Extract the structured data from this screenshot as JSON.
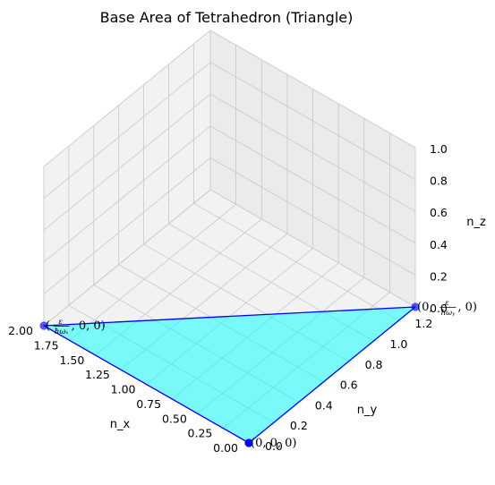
{
  "chart_data": {
    "type": "3d-surface",
    "title": "Base Area of Tetrahedron (Triangle)",
    "xlabel": "n_x",
    "ylabel": "n_y",
    "zlabel": "n_z",
    "xlim": [
      0,
      2
    ],
    "ylim": [
      0,
      1.333
    ],
    "zlim": [
      0,
      1
    ],
    "x_ticks": [
      "0.00",
      "0.25",
      "0.50",
      "0.75",
      "1.00",
      "1.25",
      "1.50",
      "1.75",
      "2.00"
    ],
    "y_ticks": [
      "0.0",
      "0.2",
      "0.4",
      "0.6",
      "0.8",
      "1.0",
      "1.2"
    ],
    "z_ticks": [
      "0.0",
      "0.2",
      "0.4",
      "0.6",
      "0.8",
      "1.0"
    ],
    "grid": true,
    "triangle": {
      "vertices": [
        {
          "x": 2,
          "y": 0,
          "z": 0
        },
        {
          "x": 0,
          "y": 1.333,
          "z": 0
        },
        {
          "x": 0,
          "y": 0,
          "z": 0
        }
      ],
      "fill_color": "#00ffff",
      "fill_opacity": 0.5,
      "edge_color": "#0000ff"
    },
    "points": [
      {
        "x": 0,
        "y": 0,
        "z": 0,
        "label": "(0, 0, 0)"
      },
      {
        "x": 2,
        "y": 0,
        "z": 0,
        "label": "(ε/ħωₓ, 0, 0)",
        "label_parts": {
          "open": "(",
          "num": "ε",
          "den": "ħωₓ",
          "rest": ", 0, 0)"
        }
      },
      {
        "x": 0,
        "y": 1.333,
        "z": 0,
        "label": "(0, ε/ħωᵧ, 0)",
        "label_parts": {
          "open": "(0, ",
          "num": "ε",
          "den": "ħωᵧ",
          "rest": ", 0)"
        }
      }
    ],
    "point_color": "#0000ff"
  }
}
